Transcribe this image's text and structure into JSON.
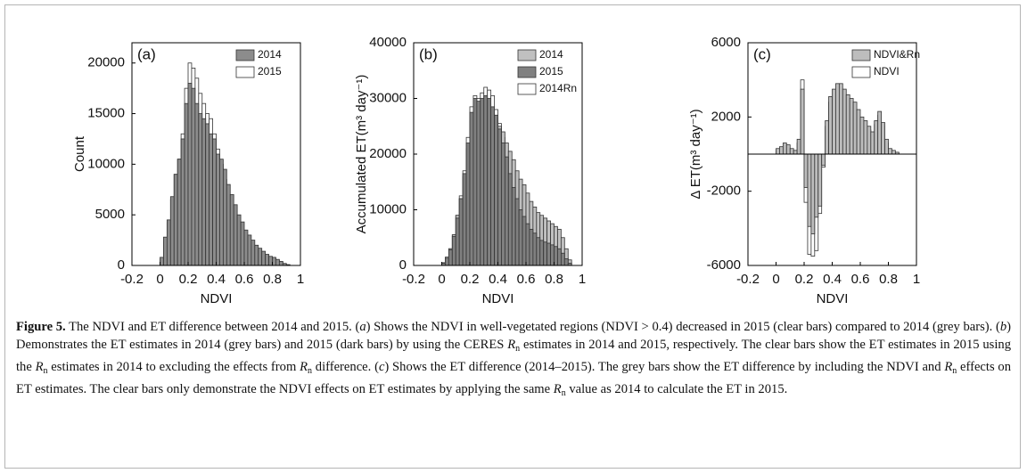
{
  "chart_data": [
    {
      "type": "histogram",
      "panel_label": "(a)",
      "xlabel": "NDVI",
      "ylabel": "Count",
      "xlim": [
        -0.2,
        1
      ],
      "xticks": [
        -0.2,
        0,
        0.2,
        0.4,
        0.6,
        0.8,
        1
      ],
      "ylim": [
        0,
        22000
      ],
      "yticks": [
        0,
        5000,
        10000,
        15000,
        20000
      ],
      "edgecolor": "#333333",
      "legend": "upper right",
      "bins": [
        0,
        0.025,
        0.05,
        0.075,
        0.1,
        0.125,
        0.15,
        0.175,
        0.2,
        0.225,
        0.25,
        0.275,
        0.3,
        0.325,
        0.35,
        0.375,
        0.4,
        0.425,
        0.45,
        0.475,
        0.5,
        0.525,
        0.55,
        0.575,
        0.6,
        0.625,
        0.65,
        0.675,
        0.7,
        0.725,
        0.75,
        0.775,
        0.8,
        0.825,
        0.85,
        0.875,
        0.9,
        0.925
      ],
      "series": [
        {
          "name": "2014",
          "color": "#8c8c8c",
          "values": [
            800,
            2800,
            4500,
            6800,
            9000,
            10500,
            12500,
            16000,
            18000,
            17500,
            16000,
            15000,
            14500,
            14000,
            13000,
            12500,
            11000,
            10500,
            9500,
            8000,
            7000,
            6000,
            5000,
            4300,
            3500,
            3000,
            2500,
            2000,
            1700,
            1400,
            1100,
            900,
            800,
            600,
            400,
            200,
            80
          ]
        },
        {
          "name": "2015",
          "color": "#ffffff",
          "values": [
            600,
            2400,
            4200,
            6500,
            9000,
            10500,
            13000,
            17500,
            20000,
            19500,
            18500,
            17000,
            16000,
            15000,
            14500,
            13000,
            11500,
            10000,
            8500,
            7000,
            6000,
            4500,
            3800,
            3200,
            2700,
            2300,
            2000,
            1700,
            1400,
            1200,
            1000,
            800,
            700,
            500,
            350,
            150,
            60
          ]
        }
      ]
    },
    {
      "type": "histogram",
      "panel_label": "(b)",
      "xlabel": "NDVI",
      "ylabel": "Accumulated ET(m³ day⁻¹)",
      "xlim": [
        -0.2,
        1
      ],
      "xticks": [
        -0.2,
        0,
        0.2,
        0.4,
        0.6,
        0.8,
        1
      ],
      "ylim": [
        0,
        40000
      ],
      "yticks": [
        0,
        10000,
        20000,
        30000,
        40000
      ],
      "edgecolor": "#333333",
      "legend": "upper right",
      "bins": [
        0,
        0.025,
        0.05,
        0.075,
        0.1,
        0.125,
        0.15,
        0.175,
        0.2,
        0.225,
        0.25,
        0.275,
        0.3,
        0.325,
        0.35,
        0.375,
        0.4,
        0.425,
        0.45,
        0.475,
        0.5,
        0.525,
        0.55,
        0.575,
        0.6,
        0.625,
        0.65,
        0.675,
        0.7,
        0.725,
        0.75,
        0.775,
        0.8,
        0.825,
        0.85,
        0.875,
        0.9,
        0.925
      ],
      "series": [
        {
          "name": "2014",
          "color": "#c0c0c0",
          "values": [
            500,
            1500,
            3000,
            5500,
            9000,
            12000,
            16000,
            21000,
            26000,
            29500,
            29000,
            29500,
            30000,
            29000,
            28000,
            26500,
            25000,
            24000,
            22000,
            20500,
            19000,
            17000,
            15500,
            14500,
            13000,
            11500,
            10500,
            9500,
            9000,
            8500,
            8000,
            7500,
            7000,
            6500,
            5000,
            3000,
            1000
          ]
        },
        {
          "name": "2015",
          "color": "#808080",
          "values": [
            400,
            1300,
            2800,
            5200,
            8500,
            12000,
            16500,
            22000,
            27500,
            30000,
            29500,
            30000,
            30500,
            30000,
            28500,
            27000,
            24500,
            22000,
            19500,
            16500,
            14000,
            12000,
            10000,
            8800,
            7500,
            6500,
            5800,
            5000,
            4500,
            4200,
            4000,
            3700,
            3400,
            3000,
            2200,
            1200,
            400
          ]
        },
        {
          "name": "2014Rn",
          "color": "#ffffff",
          "values": [
            450,
            1400,
            3000,
            5500,
            9000,
            12500,
            17000,
            23000,
            28500,
            30500,
            30000,
            31000,
            32000,
            31500,
            30500,
            28000,
            25500,
            23000,
            20000,
            17000,
            14500,
            12500,
            10500,
            9000,
            7800,
            6800,
            6000,
            5200,
            4700,
            4400,
            4100,
            3800,
            3500,
            3100,
            2300,
            1300,
            450
          ]
        }
      ]
    },
    {
      "type": "histogram",
      "panel_label": "(c)",
      "xlabel": "NDVI",
      "ylabel": "Δ ET(m³ day⁻¹)",
      "xlim": [
        -0.2,
        1
      ],
      "xticks": [
        -0.2,
        0,
        0.2,
        0.4,
        0.6,
        0.8,
        1
      ],
      "ylim": [
        -6000,
        6000
      ],
      "yticks": [
        -6000,
        -2000,
        2000,
        6000
      ],
      "edgecolor": "#333333",
      "legend": "upper right",
      "bins": [
        0,
        0.025,
        0.05,
        0.075,
        0.1,
        0.125,
        0.15,
        0.175,
        0.2,
        0.225,
        0.25,
        0.275,
        0.3,
        0.325,
        0.35,
        0.375,
        0.4,
        0.425,
        0.45,
        0.475,
        0.5,
        0.525,
        0.55,
        0.575,
        0.6,
        0.625,
        0.65,
        0.675,
        0.7,
        0.725,
        0.75,
        0.775,
        0.8,
        0.825,
        0.85,
        0.875,
        0.9,
        0.925
      ],
      "series": [
        {
          "name": "NDVI&Rn",
          "color": "#bdbdbd",
          "values": [
            300,
            400,
            600,
            500,
            300,
            200,
            800,
            3500,
            -1800,
            -3900,
            -4300,
            -3400,
            -2800,
            -600,
            1800,
            3100,
            3500,
            3800,
            3800,
            3500,
            3200,
            3000,
            2800,
            2400,
            2000,
            1800,
            1500,
            1200,
            1800,
            2300,
            1700,
            800,
            300,
            200,
            100,
            0,
            0
          ]
        },
        {
          "name": "NDVI",
          "color": "#ffffff",
          "values": [
            200,
            300,
            400,
            300,
            200,
            100,
            600,
            4000,
            -2600,
            -5400,
            -5500,
            -5200,
            -3200,
            -700,
            1500,
            2800,
            3000,
            3200,
            3000,
            2800,
            2600,
            2400,
            2200,
            1900,
            1700,
            1500,
            1300,
            1000,
            1600,
            2100,
            1500,
            600,
            200,
            100,
            50,
            0,
            0
          ]
        }
      ]
    }
  ],
  "caption": [
    {
      "text": "Figure 5.",
      "format": "bold"
    },
    {
      "text": " The NDVI and ET difference between 2014 and 2015. (",
      "format": "plain"
    },
    {
      "text": "a",
      "format": "italic"
    },
    {
      "text": ") Shows the NDVI in well-vegetated regions (NDVI > 0.4) decreased in 2015 (clear bars) compared to 2014 (grey bars). (",
      "format": "plain"
    },
    {
      "text": "b",
      "format": "italic"
    },
    {
      "text": ") Demonstrates the ET estimates in 2014 (grey bars) and 2015 (dark bars) by using the CERES ",
      "format": "plain"
    },
    {
      "text": "R",
      "format": "italic"
    },
    {
      "text": "n",
      "format": "sub"
    },
    {
      "text": " estimates in 2014 and 2015, respectively. The clear bars show the ET estimates in 2015 using the ",
      "format": "plain"
    },
    {
      "text": "R",
      "format": "italic"
    },
    {
      "text": "n",
      "format": "sub"
    },
    {
      "text": " estimates in 2014 to excluding the effects from ",
      "format": "plain"
    },
    {
      "text": "R",
      "format": "italic"
    },
    {
      "text": "n",
      "format": "sub"
    },
    {
      "text": " difference. (",
      "format": "plain"
    },
    {
      "text": "c",
      "format": "italic"
    },
    {
      "text": ") Shows the ET difference (2014–2015). The grey bars show the ET difference by including the NDVI and ",
      "format": "plain"
    },
    {
      "text": "R",
      "format": "italic"
    },
    {
      "text": "n",
      "format": "sub"
    },
    {
      "text": " effects on ET estimates. The clear bars only demonstrate the NDVI effects on ET estimates by applying the same ",
      "format": "plain"
    },
    {
      "text": "R",
      "format": "italic"
    },
    {
      "text": "n",
      "format": "sub"
    },
    {
      "text": " value as 2014 to calculate the ET in 2015.",
      "format": "plain"
    }
  ]
}
